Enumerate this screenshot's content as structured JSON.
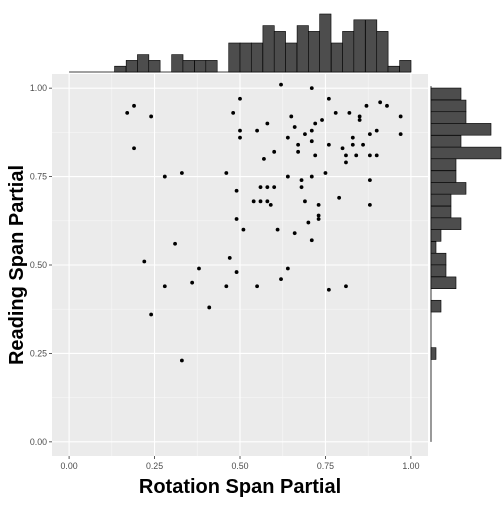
{
  "chart_data": {
    "type": "scatter",
    "title": "",
    "xlabel": "Rotation Span Partial",
    "ylabel": "Reading Span Partial",
    "xlim": [
      -0.05,
      1.05
    ],
    "ylim": [
      -0.04,
      1.04
    ],
    "x_ticks": [
      "0.00",
      "0.25",
      "0.50",
      "0.75",
      "1.00"
    ],
    "y_ticks": [
      "0.00",
      "0.25",
      "0.50",
      "0.75",
      "1.00"
    ],
    "grid": true,
    "point_color": "#000000",
    "panel_background": "#ebebeb",
    "histogram_color": "#4d4d4d",
    "points": [
      {
        "x": 0.17,
        "y": 0.93
      },
      {
        "x": 0.19,
        "y": 0.95
      },
      {
        "x": 0.19,
        "y": 0.83
      },
      {
        "x": 0.24,
        "y": 0.92
      },
      {
        "x": 0.28,
        "y": 0.75
      },
      {
        "x": 0.33,
        "y": 0.76
      },
      {
        "x": 0.31,
        "y": 0.56
      },
      {
        "x": 0.22,
        "y": 0.51
      },
      {
        "x": 0.28,
        "y": 0.44
      },
      {
        "x": 0.36,
        "y": 0.45
      },
      {
        "x": 0.38,
        "y": 0.49
      },
      {
        "x": 0.24,
        "y": 0.36
      },
      {
        "x": 0.41,
        "y": 0.38
      },
      {
        "x": 0.33,
        "y": 0.23
      },
      {
        "x": 0.47,
        "y": 0.52
      },
      {
        "x": 0.46,
        "y": 0.44
      },
      {
        "x": 0.49,
        "y": 0.48
      },
      {
        "x": 0.46,
        "y": 0.76
      },
      {
        "x": 0.49,
        "y": 0.71
      },
      {
        "x": 0.49,
        "y": 0.63
      },
      {
        "x": 0.51,
        "y": 0.6
      },
      {
        "x": 0.48,
        "y": 0.93
      },
      {
        "x": 0.5,
        "y": 0.97
      },
      {
        "x": 0.5,
        "y": 0.88
      },
      {
        "x": 0.5,
        "y": 0.86
      },
      {
        "x": 0.55,
        "y": 0.44
      },
      {
        "x": 0.54,
        "y": 0.68
      },
      {
        "x": 0.56,
        "y": 0.72
      },
      {
        "x": 0.56,
        "y": 0.68
      },
      {
        "x": 0.55,
        "y": 0.88
      },
      {
        "x": 0.57,
        "y": 0.8
      },
      {
        "x": 0.58,
        "y": 0.9
      },
      {
        "x": 0.58,
        "y": 0.68
      },
      {
        "x": 0.58,
        "y": 0.72
      },
      {
        "x": 0.59,
        "y": 0.67
      },
      {
        "x": 0.6,
        "y": 0.82
      },
      {
        "x": 0.61,
        "y": 0.6
      },
      {
        "x": 0.62,
        "y": 0.46
      },
      {
        "x": 0.64,
        "y": 0.49
      },
      {
        "x": 0.62,
        "y": 1.01
      },
      {
        "x": 0.6,
        "y": 0.72
      },
      {
        "x": 0.64,
        "y": 0.86
      },
      {
        "x": 0.64,
        "y": 0.75
      },
      {
        "x": 0.65,
        "y": 0.92
      },
      {
        "x": 0.66,
        "y": 0.89
      },
      {
        "x": 0.66,
        "y": 0.59
      },
      {
        "x": 0.67,
        "y": 0.84
      },
      {
        "x": 0.67,
        "y": 0.82
      },
      {
        "x": 0.68,
        "y": 0.74
      },
      {
        "x": 0.68,
        "y": 0.72
      },
      {
        "x": 0.69,
        "y": 0.87
      },
      {
        "x": 0.69,
        "y": 0.68
      },
      {
        "x": 0.71,
        "y": 0.85
      },
      {
        "x": 0.71,
        "y": 0.88
      },
      {
        "x": 0.71,
        "y": 0.75
      },
      {
        "x": 0.7,
        "y": 0.62
      },
      {
        "x": 0.71,
        "y": 0.57
      },
      {
        "x": 0.71,
        "y": 1.0
      },
      {
        "x": 0.72,
        "y": 0.9
      },
      {
        "x": 0.72,
        "y": 0.81
      },
      {
        "x": 0.73,
        "y": 0.64
      },
      {
        "x": 0.73,
        "y": 0.63
      },
      {
        "x": 0.73,
        "y": 0.67
      },
      {
        "x": 0.74,
        "y": 0.91
      },
      {
        "x": 0.75,
        "y": 0.76
      },
      {
        "x": 0.76,
        "y": 0.97
      },
      {
        "x": 0.76,
        "y": 0.84
      },
      {
        "x": 0.76,
        "y": 0.43
      },
      {
        "x": 0.78,
        "y": 0.93
      },
      {
        "x": 0.79,
        "y": 0.69
      },
      {
        "x": 0.8,
        "y": 0.83
      },
      {
        "x": 0.81,
        "y": 0.79
      },
      {
        "x": 0.81,
        "y": 0.81
      },
      {
        "x": 0.81,
        "y": 0.44
      },
      {
        "x": 0.82,
        "y": 0.93
      },
      {
        "x": 0.83,
        "y": 0.84
      },
      {
        "x": 0.83,
        "y": 0.86
      },
      {
        "x": 0.84,
        "y": 0.81
      },
      {
        "x": 0.85,
        "y": 0.92
      },
      {
        "x": 0.85,
        "y": 0.91
      },
      {
        "x": 0.86,
        "y": 0.84
      },
      {
        "x": 0.87,
        "y": 0.95
      },
      {
        "x": 0.88,
        "y": 0.87
      },
      {
        "x": 0.88,
        "y": 0.81
      },
      {
        "x": 0.88,
        "y": 0.74
      },
      {
        "x": 0.88,
        "y": 0.67
      },
      {
        "x": 0.9,
        "y": 0.81
      },
      {
        "x": 0.9,
        "y": 0.88
      },
      {
        "x": 0.91,
        "y": 0.96
      },
      {
        "x": 0.93,
        "y": 0.95
      },
      {
        "x": 0.97,
        "y": 0.92
      },
      {
        "x": 0.97,
        "y": 0.87
      }
    ],
    "x_histogram": {
      "bin_width": 0.0333,
      "counts": [
        {
          "bin_start": 0.0,
          "count": 0
        },
        {
          "bin_start": 0.033,
          "count": 0
        },
        {
          "bin_start": 0.067,
          "count": 0
        },
        {
          "bin_start": 0.1,
          "count": 0
        },
        {
          "bin_start": 0.133,
          "count": 1
        },
        {
          "bin_start": 0.167,
          "count": 2
        },
        {
          "bin_start": 0.2,
          "count": 3
        },
        {
          "bin_start": 0.233,
          "count": 2
        },
        {
          "bin_start": 0.267,
          "count": 0
        },
        {
          "bin_start": 0.3,
          "count": 3
        },
        {
          "bin_start": 0.333,
          "count": 2
        },
        {
          "bin_start": 0.367,
          "count": 2
        },
        {
          "bin_start": 0.4,
          "count": 2
        },
        {
          "bin_start": 0.433,
          "count": 0
        },
        {
          "bin_start": 0.467,
          "count": 5
        },
        {
          "bin_start": 0.5,
          "count": 5
        },
        {
          "bin_start": 0.533,
          "count": 5
        },
        {
          "bin_start": 0.567,
          "count": 8
        },
        {
          "bin_start": 0.6,
          "count": 7
        },
        {
          "bin_start": 0.633,
          "count": 5
        },
        {
          "bin_start": 0.667,
          "count": 8
        },
        {
          "bin_start": 0.7,
          "count": 7
        },
        {
          "bin_start": 0.733,
          "count": 10
        },
        {
          "bin_start": 0.767,
          "count": 5
        },
        {
          "bin_start": 0.8,
          "count": 7
        },
        {
          "bin_start": 0.833,
          "count": 9
        },
        {
          "bin_start": 0.867,
          "count": 9
        },
        {
          "bin_start": 0.9,
          "count": 7
        },
        {
          "bin_start": 0.933,
          "count": 1
        },
        {
          "bin_start": 0.967,
          "count": 2
        }
      ]
    },
    "y_histogram": {
      "bin_width": 0.0333,
      "counts": [
        {
          "bin_start": 0.967,
          "count": 6
        },
        {
          "bin_start": 0.933,
          "count": 7
        },
        {
          "bin_start": 0.9,
          "count": 7
        },
        {
          "bin_start": 0.867,
          "count": 12
        },
        {
          "bin_start": 0.833,
          "count": 6
        },
        {
          "bin_start": 0.8,
          "count": 14
        },
        {
          "bin_start": 0.767,
          "count": 5
        },
        {
          "bin_start": 0.733,
          "count": 5
        },
        {
          "bin_start": 0.7,
          "count": 7
        },
        {
          "bin_start": 0.667,
          "count": 4
        },
        {
          "bin_start": 0.633,
          "count": 4
        },
        {
          "bin_start": 0.6,
          "count": 6
        },
        {
          "bin_start": 0.567,
          "count": 2
        },
        {
          "bin_start": 0.533,
          "count": 1
        },
        {
          "bin_start": 0.5,
          "count": 3
        },
        {
          "bin_start": 0.467,
          "count": 3
        },
        {
          "bin_start": 0.433,
          "count": 5
        },
        {
          "bin_start": 0.4,
          "count": 0
        },
        {
          "bin_start": 0.367,
          "count": 2
        },
        {
          "bin_start": 0.333,
          "count": 0
        },
        {
          "bin_start": 0.3,
          "count": 0
        },
        {
          "bin_start": 0.267,
          "count": 0
        },
        {
          "bin_start": 0.233,
          "count": 1
        }
      ]
    }
  }
}
